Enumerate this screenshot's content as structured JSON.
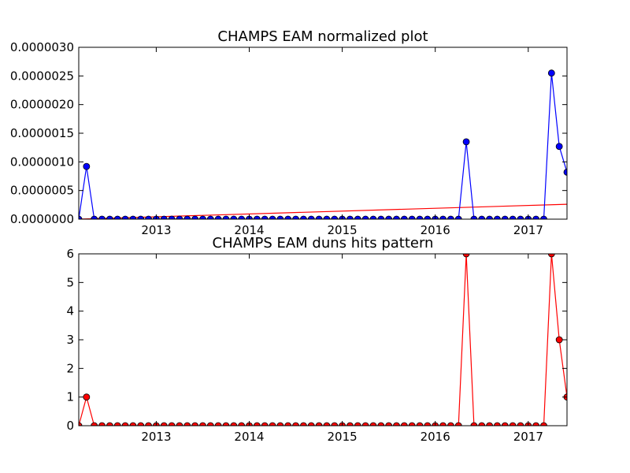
{
  "chart_data": [
    {
      "type": "line",
      "title": "CHAMPS EAM normalized plot",
      "xlabel": "",
      "ylabel": "",
      "x": [
        "2012-03",
        "2012-04",
        "2012-05",
        "2012-06",
        "2012-07",
        "2012-08",
        "2012-09",
        "2012-10",
        "2012-11",
        "2012-12",
        "2013-01",
        "2013-02",
        "2013-03",
        "2013-04",
        "2013-05",
        "2013-06",
        "2013-07",
        "2013-08",
        "2013-09",
        "2013-10",
        "2013-11",
        "2013-12",
        "2014-01",
        "2014-02",
        "2014-03",
        "2014-04",
        "2014-05",
        "2014-06",
        "2014-07",
        "2014-08",
        "2014-09",
        "2014-10",
        "2014-11",
        "2014-12",
        "2015-01",
        "2015-02",
        "2015-03",
        "2015-04",
        "2015-05",
        "2015-06",
        "2015-07",
        "2015-08",
        "2015-09",
        "2015-10",
        "2015-11",
        "2015-12",
        "2016-01",
        "2016-02",
        "2016-03",
        "2016-04",
        "2016-05",
        "2016-06",
        "2016-07",
        "2016-08",
        "2016-09",
        "2016-10",
        "2016-11",
        "2016-12",
        "2017-01",
        "2017-02",
        "2017-03",
        "2017-04",
        "2017-05",
        "2017-06"
      ],
      "xlim": [
        "2012-03",
        "2017-06"
      ],
      "ylim": [
        0,
        3e-06
      ],
      "x_ticks": [
        "2013",
        "2014",
        "2015",
        "2016",
        "2017"
      ],
      "x_tick_dates": [
        "2013-01",
        "2014-01",
        "2015-01",
        "2016-01",
        "2017-01"
      ],
      "y_ticks": [
        "0.0000000",
        "0.0000005",
        "0.0000010",
        "0.0000015",
        "0.0000020",
        "0.0000025",
        "0.0000030"
      ],
      "y_tick_values": [
        0,
        5e-07,
        1e-06,
        1.5e-06,
        2e-06,
        2.5e-06,
        3e-06
      ],
      "series": [
        {
          "color": "#0000ff",
          "marker_color": "#0000ff",
          "values": [
            0,
            9.2e-07,
            0,
            0,
            0,
            0,
            0,
            0,
            0,
            0,
            0,
            0,
            0,
            0,
            0,
            0,
            0,
            0,
            0,
            0,
            0,
            0,
            0,
            0,
            0,
            0,
            0,
            0,
            0,
            0,
            0,
            0,
            0,
            0,
            0,
            0,
            0,
            0,
            0,
            0,
            0,
            0,
            0,
            0,
            0,
            0,
            0,
            0,
            0,
            0,
            1.35e-06,
            0,
            0,
            0,
            0,
            0,
            0,
            0,
            0,
            0,
            0,
            2.55e-06,
            1.27e-06,
            8.2e-07
          ]
        }
      ],
      "trend_line": {
        "color": "#ff0000",
        "x": [
          "2012-03",
          "2017-06"
        ],
        "values": [
          0,
          2.6e-07
        ]
      },
      "grid": false
    },
    {
      "type": "line",
      "title": "CHAMPS EAM duns hits pattern",
      "xlabel": "",
      "ylabel": "",
      "x": [
        "2012-03",
        "2012-04",
        "2012-05",
        "2012-06",
        "2012-07",
        "2012-08",
        "2012-09",
        "2012-10",
        "2012-11",
        "2012-12",
        "2013-01",
        "2013-02",
        "2013-03",
        "2013-04",
        "2013-05",
        "2013-06",
        "2013-07",
        "2013-08",
        "2013-09",
        "2013-10",
        "2013-11",
        "2013-12",
        "2014-01",
        "2014-02",
        "2014-03",
        "2014-04",
        "2014-05",
        "2014-06",
        "2014-07",
        "2014-08",
        "2014-09",
        "2014-10",
        "2014-11",
        "2014-12",
        "2015-01",
        "2015-02",
        "2015-03",
        "2015-04",
        "2015-05",
        "2015-06",
        "2015-07",
        "2015-08",
        "2015-09",
        "2015-10",
        "2015-11",
        "2015-12",
        "2016-01",
        "2016-02",
        "2016-03",
        "2016-04",
        "2016-05",
        "2016-06",
        "2016-07",
        "2016-08",
        "2016-09",
        "2016-10",
        "2016-11",
        "2016-12",
        "2017-01",
        "2017-02",
        "2017-03",
        "2017-04",
        "2017-05",
        "2017-06"
      ],
      "xlim": [
        "2012-03",
        "2017-06"
      ],
      "ylim": [
        0,
        6
      ],
      "x_ticks": [
        "2013",
        "2014",
        "2015",
        "2016",
        "2017"
      ],
      "x_tick_dates": [
        "2013-01",
        "2014-01",
        "2015-01",
        "2016-01",
        "2017-01"
      ],
      "y_ticks": [
        "0",
        "1",
        "2",
        "3",
        "4",
        "5",
        "6"
      ],
      "y_tick_values": [
        0,
        1,
        2,
        3,
        4,
        5,
        6
      ],
      "series": [
        {
          "color": "#ff0000",
          "marker_color": "#ff0000",
          "values": [
            0,
            1,
            0,
            0,
            0,
            0,
            0,
            0,
            0,
            0,
            0,
            0,
            0,
            0,
            0,
            0,
            0,
            0,
            0,
            0,
            0,
            0,
            0,
            0,
            0,
            0,
            0,
            0,
            0,
            0,
            0,
            0,
            0,
            0,
            0,
            0,
            0,
            0,
            0,
            0,
            0,
            0,
            0,
            0,
            0,
            0,
            0,
            0,
            0,
            0,
            6,
            0,
            0,
            0,
            0,
            0,
            0,
            0,
            0,
            0,
            0,
            6,
            3,
            1
          ]
        }
      ],
      "grid": false
    }
  ]
}
